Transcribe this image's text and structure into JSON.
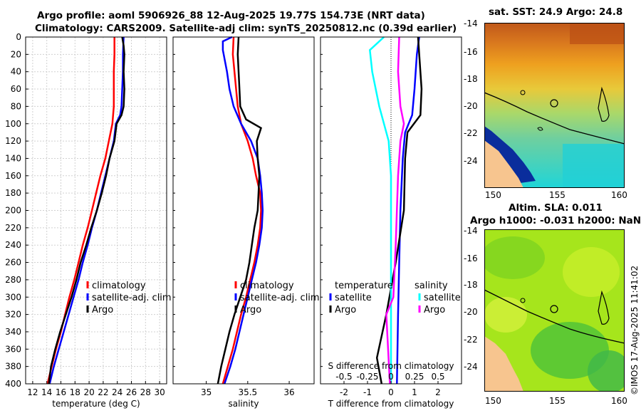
{
  "figure": {
    "title_line1": "Argo profile: aoml 5906926_88 12-Aug-2025 19.77S 154.73E (NRT data)",
    "title_line2": "Climatology: CARS2009. Satellite-adj clim: synTS_20250812.nc (0.39d earlier)",
    "copyright": "©IMOS 17-Aug-2025 11:41:02"
  },
  "colors": {
    "climatology": "#ff0000",
    "satellite": "#0000ff",
    "argo": "#000000",
    "sat_salinity": "#00ffff",
    "argo_salinity": "#ff00ff",
    "land": "#f7c58f"
  },
  "chart_data": [
    {
      "id": "temperature",
      "type": "line",
      "xlabel": "temperature (deg C)",
      "ylabel": "",
      "xlim": [
        11,
        31
      ],
      "ylim": [
        400,
        0
      ],
      "xticks": [
        12,
        14,
        16,
        18,
        20,
        22,
        24,
        26,
        28,
        30
      ],
      "xtick_labels": [
        "12",
        "14",
        "16",
        "18",
        "20",
        "22",
        "24",
        "26",
        "28",
        "30"
      ],
      "yticks": [
        0,
        20,
        40,
        60,
        80,
        100,
        120,
        140,
        160,
        180,
        200,
        220,
        240,
        260,
        280,
        300,
        320,
        340,
        360,
        380,
        400
      ],
      "ytick_labels": [
        "0",
        "20",
        "40",
        "60",
        "80",
        "100",
        "120",
        "140",
        "160",
        "180",
        "200",
        "220",
        "240",
        "260",
        "280",
        "300",
        "320",
        "340",
        "360",
        "380",
        "400"
      ],
      "grid": true,
      "legend": [
        "climatology",
        "satellite-adj. clim",
        "Argo"
      ],
      "series": [
        {
          "name": "climatology",
          "color": "#ff0000",
          "points": [
            [
              23.6,
              0
            ],
            [
              23.6,
              20
            ],
            [
              23.5,
              40
            ],
            [
              23.5,
              60
            ],
            [
              23.5,
              80
            ],
            [
              23.3,
              100
            ],
            [
              22.8,
              120
            ],
            [
              22.3,
              140
            ],
            [
              21.6,
              160
            ],
            [
              21.0,
              180
            ],
            [
              20.4,
              200
            ],
            [
              19.8,
              220
            ],
            [
              19.1,
              240
            ],
            [
              18.5,
              260
            ],
            [
              17.9,
              280
            ],
            [
              17.2,
              300
            ],
            [
              16.6,
              320
            ],
            [
              16.0,
              340
            ],
            [
              15.3,
              360
            ],
            [
              14.7,
              380
            ],
            [
              14.1,
              400
            ]
          ]
        },
        {
          "name": "satellite-adj. clim",
          "color": "#0000ff",
          "points": [
            [
              24.9,
              0
            ],
            [
              24.8,
              20
            ],
            [
              24.8,
              40
            ],
            [
              24.7,
              60
            ],
            [
              24.6,
              80
            ],
            [
              24.4,
              90
            ],
            [
              23.8,
              100
            ],
            [
              23.5,
              120
            ],
            [
              22.9,
              140
            ],
            [
              22.3,
              160
            ],
            [
              21.7,
              180
            ],
            [
              21.1,
              200
            ],
            [
              20.4,
              220
            ],
            [
              19.8,
              240
            ],
            [
              19.1,
              260
            ],
            [
              18.5,
              280
            ],
            [
              17.8,
              300
            ],
            [
              17.1,
              320
            ],
            [
              16.4,
              340
            ],
            [
              15.7,
              360
            ],
            [
              15.0,
              380
            ],
            [
              14.4,
              400
            ]
          ]
        },
        {
          "name": "Argo",
          "color": "#000000",
          "points": [
            [
              24.7,
              0
            ],
            [
              24.9,
              10
            ],
            [
              25.0,
              20
            ],
            [
              24.9,
              40
            ],
            [
              25.0,
              60
            ],
            [
              24.9,
              80
            ],
            [
              24.6,
              90
            ],
            [
              23.9,
              100
            ],
            [
              23.6,
              120
            ],
            [
              22.9,
              140
            ],
            [
              22.4,
              160
            ],
            [
              21.8,
              180
            ],
            [
              21.1,
              200
            ],
            [
              20.3,
              220
            ],
            [
              19.6,
              240
            ],
            [
              18.8,
              260
            ],
            [
              18.2,
              280
            ],
            [
              17.5,
              300
            ],
            [
              16.7,
              320
            ],
            [
              15.9,
              340
            ],
            [
              15.2,
              360
            ],
            [
              14.6,
              380
            ],
            [
              14.3,
              400
            ]
          ]
        }
      ]
    },
    {
      "id": "salinity",
      "type": "line",
      "xlabel": "salinity",
      "xlim": [
        34.6,
        36.3
      ],
      "ylim": [
        400,
        0
      ],
      "xticks": [
        35,
        35.5,
        36
      ],
      "xtick_labels": [
        "35",
        "35.5",
        "36"
      ],
      "grid": false,
      "legend": [
        "climatology",
        "satellite-adj. clim",
        "Argo"
      ],
      "series": [
        {
          "name": "climatology",
          "color": "#ff0000",
          "points": [
            [
              35.33,
              0
            ],
            [
              35.32,
              20
            ],
            [
              35.34,
              40
            ],
            [
              35.36,
              60
            ],
            [
              35.38,
              80
            ],
            [
              35.42,
              100
            ],
            [
              35.5,
              120
            ],
            [
              35.56,
              140
            ],
            [
              35.6,
              160
            ],
            [
              35.65,
              180
            ],
            [
              35.66,
              200
            ],
            [
              35.65,
              220
            ],
            [
              35.62,
              240
            ],
            [
              35.58,
              260
            ],
            [
              35.53,
              280
            ],
            [
              35.48,
              300
            ],
            [
              35.42,
              320
            ],
            [
              35.37,
              340
            ],
            [
              35.32,
              360
            ],
            [
              35.26,
              380
            ],
            [
              35.2,
              400
            ]
          ]
        },
        {
          "name": "satellite-adj. clim",
          "color": "#0000ff",
          "points": [
            [
              35.31,
              0
            ],
            [
              35.2,
              5
            ],
            [
              35.2,
              15
            ],
            [
              35.25,
              40
            ],
            [
              35.28,
              60
            ],
            [
              35.33,
              80
            ],
            [
              35.42,
              100
            ],
            [
              35.54,
              120
            ],
            [
              35.62,
              140
            ],
            [
              35.65,
              160
            ],
            [
              35.67,
              180
            ],
            [
              35.68,
              200
            ],
            [
              35.67,
              220
            ],
            [
              35.64,
              240
            ],
            [
              35.6,
              260
            ],
            [
              35.55,
              280
            ],
            [
              35.5,
              300
            ],
            [
              35.45,
              320
            ],
            [
              35.4,
              340
            ],
            [
              35.35,
              360
            ],
            [
              35.29,
              380
            ],
            [
              35.22,
              400
            ]
          ]
        },
        {
          "name": "Argo",
          "color": "#000000",
          "points": [
            [
              35.39,
              0
            ],
            [
              35.38,
              20
            ],
            [
              35.39,
              40
            ],
            [
              35.4,
              60
            ],
            [
              35.41,
              80
            ],
            [
              35.48,
              95
            ],
            [
              35.66,
              105
            ],
            [
              35.61,
              120
            ],
            [
              35.62,
              140
            ],
            [
              35.64,
              160
            ],
            [
              35.63,
              180
            ],
            [
              35.62,
              200
            ],
            [
              35.58,
              220
            ],
            [
              35.55,
              240
            ],
            [
              35.52,
              260
            ],
            [
              35.48,
              280
            ],
            [
              35.41,
              300
            ],
            [
              35.34,
              320
            ],
            [
              35.28,
              340
            ],
            [
              35.23,
              360
            ],
            [
              35.18,
              380
            ],
            [
              35.14,
              400
            ]
          ]
        }
      ]
    },
    {
      "id": "difference",
      "type": "line",
      "xlabel": "T difference from climatology",
      "xlabel_top": "S difference from climatology",
      "xlim": [
        -3,
        3
      ],
      "ylim": [
        400,
        0
      ],
      "xticks": [
        -2,
        -1,
        0,
        1,
        2
      ],
      "xtick_labels": [
        "-2",
        "-1",
        "0",
        "1",
        "2"
      ],
      "s_xticks": [
        -0.5,
        -0.25,
        0,
        0.25,
        0.5
      ],
      "s_xtick_labels": [
        "-0.5",
        "-0.25",
        "0",
        "0.25",
        "0.5"
      ],
      "legend_temperature_title": "temperature",
      "legend_temperature": [
        "satellite",
        "Argo"
      ],
      "legend_salinity_title": "salinity",
      "legend_salinity": [
        "satellite",
        "Argo"
      ],
      "series": [
        {
          "name": "temperature satellite",
          "color": "#0000ff",
          "points": [
            [
              1.2,
              0
            ],
            [
              1.1,
              20
            ],
            [
              1.0,
              60
            ],
            [
              0.9,
              90
            ],
            [
              0.6,
              110
            ],
            [
              0.5,
              140
            ],
            [
              0.4,
              200
            ],
            [
              0.35,
              260
            ],
            [
              0.3,
              320
            ],
            [
              0.25,
              400
            ]
          ]
        },
        {
          "name": "temperature Argo",
          "color": "#000000",
          "points": [
            [
              1.15,
              0
            ],
            [
              1.2,
              20
            ],
            [
              1.3,
              60
            ],
            [
              1.25,
              90
            ],
            [
              0.7,
              110
            ],
            [
              0.6,
              140
            ],
            [
              0.55,
              200
            ],
            [
              0.2,
              260
            ],
            [
              -0.2,
              320
            ],
            [
              -0.6,
              370
            ],
            [
              -0.4,
              400
            ]
          ]
        },
        {
          "name": "salinity satellite",
          "color": "#00ffff",
          "points": [
            [
              -0.3,
              0
            ],
            [
              -0.9,
              15
            ],
            [
              -0.8,
              40
            ],
            [
              -0.5,
              80
            ],
            [
              -0.1,
              120
            ],
            [
              0,
              160
            ],
            [
              0,
              400
            ]
          ]
        },
        {
          "name": "salinity Argo",
          "color": "#ff00ff",
          "points": [
            [
              0.35,
              0
            ],
            [
              0.3,
              40
            ],
            [
              0.4,
              80
            ],
            [
              0.55,
              100
            ],
            [
              0.4,
              120
            ],
            [
              0.3,
              160
            ],
            [
              0.2,
              240
            ],
            [
              0.1,
              300
            ],
            [
              -0.2,
              320
            ],
            [
              -0.05,
              400
            ]
          ]
        }
      ]
    }
  ],
  "maps": [
    {
      "title": "sat. SST: 24.9 Argo: 24.8",
      "yticks": [
        "-14",
        "-16",
        "-18",
        "-20",
        "-22",
        "-24"
      ],
      "xticks": [
        "150",
        "155",
        "160"
      ]
    },
    {
      "title_line1": "Altim. SLA: 0.011",
      "title_line2": "Argo h1000: -0.031 h2000: NaN",
      "yticks": [
        "-14",
        "-16",
        "-18",
        "-20",
        "-22",
        "-24"
      ],
      "xticks": [
        "150",
        "155",
        "160"
      ]
    }
  ]
}
